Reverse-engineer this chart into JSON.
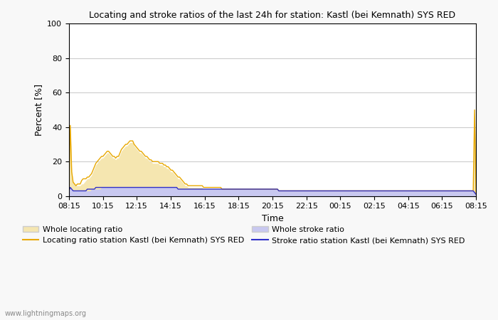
{
  "title": "Locating and stroke ratios of the last 24h for station: Kastl (bei Kemnath) SYS RED",
  "ylabel": "Percent [%]",
  "xlabel": "Time",
  "xlabels": [
    "08:15",
    "10:15",
    "12:15",
    "14:15",
    "16:15",
    "18:15",
    "20:15",
    "22:15",
    "00:15",
    "02:15",
    "04:15",
    "06:15",
    "08:15"
  ],
  "ylim": [
    0,
    100
  ],
  "yticks": [
    0,
    20,
    40,
    60,
    80,
    100
  ],
  "watermark": "www.lightningmaps.org",
  "legend_items": [
    {
      "label": "Whole locating ratio",
      "type": "fill",
      "color": "#f5e6b0"
    },
    {
      "label": "Locating ratio station Kastl (bei Kemnath) SYS RED",
      "type": "line",
      "color": "#e8a800"
    },
    {
      "label": "Whole stroke ratio",
      "type": "fill",
      "color": "#c8c8f0"
    },
    {
      "label": "Stroke ratio station Kastl (bei Kemnath) SYS RED",
      "type": "line",
      "color": "#3030c8"
    }
  ],
  "bg_color": "#f8f8f8",
  "plot_bg_color": "#ffffff",
  "grid_color": "#cccccc",
  "whole_locating": [
    5,
    41,
    14,
    8,
    7,
    6,
    6,
    6,
    6,
    7,
    7,
    8,
    9,
    10,
    10,
    11,
    12,
    14,
    16,
    18,
    19,
    20,
    21,
    22,
    22,
    23,
    24,
    25,
    25,
    24,
    23,
    22,
    22,
    21,
    22,
    22,
    24,
    26,
    27,
    28,
    29,
    29,
    30,
    31,
    31,
    31,
    29,
    28,
    27,
    26,
    25,
    25,
    24,
    23,
    22,
    22,
    21,
    20,
    20,
    19,
    19,
    19,
    19,
    19,
    18,
    18,
    18,
    17,
    17,
    16,
    16,
    15,
    14,
    14,
    13,
    12,
    11,
    10,
    10,
    9,
    8,
    7,
    6,
    6,
    5,
    5,
    5,
    5,
    5,
    5,
    5,
    5,
    5,
    5,
    5,
    4,
    4,
    4,
    4,
    4,
    4,
    4,
    4,
    4,
    4,
    4,
    4,
    4,
    3,
    3,
    3,
    3,
    3,
    3,
    3,
    3,
    3,
    3,
    3,
    3,
    3,
    3,
    3,
    3,
    3,
    3,
    3,
    3,
    3,
    3,
    3,
    3,
    3,
    3,
    3,
    3,
    3,
    3,
    3,
    3,
    3,
    3,
    3,
    3,
    3,
    3,
    3,
    3,
    2,
    2,
    2,
    2,
    2,
    2,
    2,
    2,
    2,
    2,
    2,
    2,
    2,
    2,
    2,
    2,
    2,
    2,
    2,
    2,
    2,
    2,
    2,
    2,
    2,
    2,
    2,
    2,
    2,
    2,
    2,
    2,
    2,
    2,
    2,
    2,
    2,
    2,
    2,
    2,
    2,
    2,
    2,
    2,
    2,
    2,
    2,
    2,
    2,
    2,
    2,
    2,
    2,
    2,
    2,
    2,
    2,
    2,
    2,
    2,
    2,
    2,
    2,
    2,
    2,
    2,
    2,
    2,
    2,
    2,
    2,
    2,
    2,
    2,
    2,
    2,
    2,
    2,
    2,
    2,
    2,
    2,
    2,
    2,
    2,
    2,
    2,
    2,
    2,
    2,
    2,
    2,
    2,
    2,
    2,
    2,
    2,
    2,
    2,
    2,
    2,
    2,
    2,
    2,
    2,
    2,
    2,
    2,
    2,
    2,
    2,
    2,
    2,
    2,
    2,
    2,
    2,
    2,
    2,
    2,
    2,
    2,
    2,
    2,
    2,
    2,
    2,
    2,
    2,
    2,
    2,
    2,
    2,
    2,
    2,
    2,
    2,
    2,
    50,
    1
  ],
  "locating_ratio": [
    5,
    41,
    14,
    8,
    7,
    6,
    7,
    7,
    7,
    9,
    10,
    10,
    10,
    11,
    11,
    12,
    13,
    15,
    17,
    19,
    20,
    21,
    22,
    23,
    23,
    24,
    25,
    26,
    26,
    25,
    24,
    23,
    23,
    22,
    23,
    23,
    25,
    27,
    28,
    29,
    30,
    30,
    31,
    32,
    32,
    32,
    30,
    29,
    28,
    27,
    26,
    26,
    25,
    24,
    23,
    23,
    22,
    21,
    21,
    20,
    20,
    20,
    20,
    20,
    19,
    19,
    19,
    18,
    18,
    17,
    17,
    16,
    15,
    15,
    14,
    13,
    12,
    11,
    11,
    10,
    9,
    8,
    7,
    7,
    6,
    6,
    6,
    6,
    6,
    6,
    6,
    6,
    6,
    6,
    6,
    5,
    5,
    5,
    5,
    5,
    5,
    5,
    5,
    5,
    5,
    5,
    5,
    5,
    4,
    4,
    4,
    4,
    4,
    4,
    4,
    4,
    4,
    4,
    4,
    4,
    4,
    4,
    4,
    4,
    4,
    4,
    4,
    4,
    4,
    4,
    4,
    4,
    4,
    4,
    4,
    4,
    4,
    4,
    4,
    4,
    4,
    4,
    4,
    4,
    4,
    4,
    4,
    4,
    3,
    3,
    3,
    3,
    3,
    3,
    3,
    3,
    3,
    3,
    3,
    3,
    3,
    3,
    3,
    3,
    3,
    3,
    3,
    3,
    3,
    3,
    3,
    3,
    3,
    3,
    3,
    3,
    3,
    3,
    3,
    3,
    3,
    3,
    3,
    3,
    3,
    3,
    3,
    3,
    3,
    3,
    3,
    3,
    3,
    3,
    3,
    3,
    3,
    3,
    3,
    3,
    3,
    3,
    3,
    3,
    3,
    3,
    3,
    3,
    3,
    3,
    3,
    3,
    3,
    3,
    3,
    3,
    3,
    3,
    3,
    3,
    3,
    3,
    3,
    3,
    3,
    3,
    3,
    3,
    3,
    3,
    3,
    3,
    3,
    3,
    3,
    3,
    3,
    3,
    3,
    3,
    3,
    3,
    3,
    3,
    3,
    3,
    3,
    3,
    3,
    3,
    3,
    3,
    3,
    3,
    3,
    3,
    3,
    3,
    3,
    3,
    3,
    3,
    3,
    3,
    3,
    3,
    3,
    3,
    3,
    3,
    3,
    3,
    3,
    3,
    3,
    3,
    3,
    3,
    3,
    3,
    3,
    3,
    3,
    3,
    3,
    3,
    50,
    1
  ],
  "whole_stroke": [
    3,
    5,
    4,
    3,
    3,
    3,
    3,
    3,
    3,
    3,
    3,
    3,
    3,
    3,
    3,
    3,
    4,
    4,
    4,
    4,
    4,
    4,
    4,
    5,
    5,
    5,
    5,
    5,
    5,
    5,
    5,
    5,
    5,
    5,
    5,
    5,
    5,
    5,
    5,
    5,
    5,
    5,
    5,
    5,
    5,
    5,
    5,
    5,
    5,
    5,
    5,
    5,
    5,
    5,
    5,
    5,
    5,
    5,
    5,
    5,
    5,
    5,
    5,
    5,
    5,
    5,
    5,
    5,
    5,
    5,
    5,
    5,
    5,
    5,
    5,
    5,
    5,
    4,
    4,
    4,
    4,
    4,
    4,
    4,
    4,
    4,
    4,
    4,
    4,
    4,
    4,
    4,
    4,
    4,
    4,
    4,
    4,
    4,
    4,
    4,
    4,
    4,
    4,
    4,
    4,
    4,
    4,
    4,
    4,
    4,
    4,
    4,
    4,
    4,
    4,
    4,
    4,
    4,
    4,
    4,
    4,
    4,
    4,
    4,
    4,
    4,
    4,
    4,
    4,
    4,
    4,
    4,
    4,
    4,
    4,
    4,
    4,
    4,
    4,
    4,
    4,
    4,
    4,
    4,
    4,
    4,
    4,
    4,
    3,
    3,
    3,
    3,
    3,
    3,
    3,
    3,
    3,
    3,
    3,
    3,
    3,
    3,
    3,
    3,
    3,
    3,
    3,
    3,
    3,
    3,
    3,
    3,
    3,
    3,
    3,
    3,
    3,
    3,
    3,
    3,
    3,
    3,
    3,
    3,
    3,
    3,
    3,
    3,
    3,
    3,
    3,
    3,
    3,
    3,
    3,
    3,
    3,
    3,
    3,
    3,
    3,
    3,
    3,
    3,
    3,
    3,
    3,
    3,
    3,
    3,
    3,
    3,
    3,
    3,
    3,
    3,
    3,
    3,
    3,
    3,
    3,
    3,
    3,
    3,
    3,
    3,
    3,
    3,
    3,
    3,
    3,
    3,
    3,
    3,
    3,
    3,
    3,
    3,
    3,
    3,
    3,
    3,
    3,
    3,
    3,
    3,
    3,
    3,
    3,
    3,
    3,
    3,
    3,
    3,
    3,
    3,
    3,
    3,
    3,
    3,
    3,
    3,
    3,
    3,
    3,
    3,
    3,
    3,
    3,
    3,
    3,
    3,
    3,
    3,
    3,
    3,
    3,
    3,
    3,
    3,
    3,
    3,
    3,
    3,
    3,
    3,
    2,
    1
  ],
  "stroke_ratio": [
    3,
    5,
    4,
    3,
    3,
    3,
    3,
    3,
    3,
    3,
    3,
    3,
    3,
    4,
    4,
    4,
    4,
    4,
    4,
    5,
    5,
    5,
    5,
    5,
    5,
    5,
    5,
    5,
    5,
    5,
    5,
    5,
    5,
    5,
    5,
    5,
    5,
    5,
    5,
    5,
    5,
    5,
    5,
    5,
    5,
    5,
    5,
    5,
    5,
    5,
    5,
    5,
    5,
    5,
    5,
    5,
    5,
    5,
    5,
    5,
    5,
    5,
    5,
    5,
    5,
    5,
    5,
    5,
    5,
    5,
    5,
    5,
    5,
    5,
    5,
    5,
    5,
    4,
    4,
    4,
    4,
    4,
    4,
    4,
    4,
    4,
    4,
    4,
    4,
    4,
    4,
    4,
    4,
    4,
    4,
    4,
    4,
    4,
    4,
    4,
    4,
    4,
    4,
    4,
    4,
    4,
    4,
    4,
    4,
    4,
    4,
    4,
    4,
    4,
    4,
    4,
    4,
    4,
    4,
    4,
    4,
    4,
    4,
    4,
    4,
    4,
    4,
    4,
    4,
    4,
    4,
    4,
    4,
    4,
    4,
    4,
    4,
    4,
    4,
    4,
    4,
    4,
    4,
    4,
    4,
    4,
    4,
    4,
    3,
    3,
    3,
    3,
    3,
    3,
    3,
    3,
    3,
    3,
    3,
    3,
    3,
    3,
    3,
    3,
    3,
    3,
    3,
    3,
    3,
    3,
    3,
    3,
    3,
    3,
    3,
    3,
    3,
    3,
    3,
    3,
    3,
    3,
    3,
    3,
    3,
    3,
    3,
    3,
    3,
    3,
    3,
    3,
    3,
    3,
    3,
    3,
    3,
    3,
    3,
    3,
    3,
    3,
    3,
    3,
    3,
    3,
    3,
    3,
    3,
    3,
    3,
    3,
    3,
    3,
    3,
    3,
    3,
    3,
    3,
    3,
    3,
    3,
    3,
    3,
    3,
    3,
    3,
    3,
    3,
    3,
    3,
    3,
    3,
    3,
    3,
    3,
    3,
    3,
    3,
    3,
    3,
    3,
    3,
    3,
    3,
    3,
    3,
    3,
    3,
    3,
    3,
    3,
    3,
    3,
    3,
    3,
    3,
    3,
    3,
    3,
    3,
    3,
    3,
    3,
    3,
    3,
    3,
    3,
    3,
    3,
    3,
    3,
    3,
    3,
    3,
    3,
    3,
    3,
    3,
    3,
    3,
    3,
    3,
    3,
    3,
    3,
    2,
    1
  ]
}
